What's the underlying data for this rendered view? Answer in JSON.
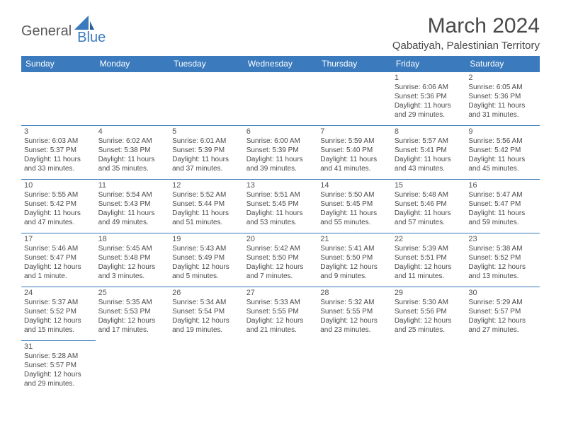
{
  "logo": {
    "part1": "General",
    "part2": "Blue"
  },
  "title": "March 2024",
  "location": "Qabatiyah, Palestinian Territory",
  "colors": {
    "header_bg": "#3a7abd",
    "header_text": "#ffffff",
    "border": "#3a7abd",
    "text": "#4a4a4a",
    "logo_gray": "#5a5a5a",
    "logo_blue": "#3a7abd",
    "background": "#ffffff"
  },
  "dayNames": [
    "Sunday",
    "Monday",
    "Tuesday",
    "Wednesday",
    "Thursday",
    "Friday",
    "Saturday"
  ],
  "weeks": [
    [
      null,
      null,
      null,
      null,
      null,
      {
        "n": "1",
        "sr": "Sunrise: 6:06 AM",
        "ss": "Sunset: 5:36 PM",
        "d1": "Daylight: 11 hours",
        "d2": "and 29 minutes."
      },
      {
        "n": "2",
        "sr": "Sunrise: 6:05 AM",
        "ss": "Sunset: 5:36 PM",
        "d1": "Daylight: 11 hours",
        "d2": "and 31 minutes."
      }
    ],
    [
      {
        "n": "3",
        "sr": "Sunrise: 6:03 AM",
        "ss": "Sunset: 5:37 PM",
        "d1": "Daylight: 11 hours",
        "d2": "and 33 minutes."
      },
      {
        "n": "4",
        "sr": "Sunrise: 6:02 AM",
        "ss": "Sunset: 5:38 PM",
        "d1": "Daylight: 11 hours",
        "d2": "and 35 minutes."
      },
      {
        "n": "5",
        "sr": "Sunrise: 6:01 AM",
        "ss": "Sunset: 5:39 PM",
        "d1": "Daylight: 11 hours",
        "d2": "and 37 minutes."
      },
      {
        "n": "6",
        "sr": "Sunrise: 6:00 AM",
        "ss": "Sunset: 5:39 PM",
        "d1": "Daylight: 11 hours",
        "d2": "and 39 minutes."
      },
      {
        "n": "7",
        "sr": "Sunrise: 5:59 AM",
        "ss": "Sunset: 5:40 PM",
        "d1": "Daylight: 11 hours",
        "d2": "and 41 minutes."
      },
      {
        "n": "8",
        "sr": "Sunrise: 5:57 AM",
        "ss": "Sunset: 5:41 PM",
        "d1": "Daylight: 11 hours",
        "d2": "and 43 minutes."
      },
      {
        "n": "9",
        "sr": "Sunrise: 5:56 AM",
        "ss": "Sunset: 5:42 PM",
        "d1": "Daylight: 11 hours",
        "d2": "and 45 minutes."
      }
    ],
    [
      {
        "n": "10",
        "sr": "Sunrise: 5:55 AM",
        "ss": "Sunset: 5:42 PM",
        "d1": "Daylight: 11 hours",
        "d2": "and 47 minutes."
      },
      {
        "n": "11",
        "sr": "Sunrise: 5:54 AM",
        "ss": "Sunset: 5:43 PM",
        "d1": "Daylight: 11 hours",
        "d2": "and 49 minutes."
      },
      {
        "n": "12",
        "sr": "Sunrise: 5:52 AM",
        "ss": "Sunset: 5:44 PM",
        "d1": "Daylight: 11 hours",
        "d2": "and 51 minutes."
      },
      {
        "n": "13",
        "sr": "Sunrise: 5:51 AM",
        "ss": "Sunset: 5:45 PM",
        "d1": "Daylight: 11 hours",
        "d2": "and 53 minutes."
      },
      {
        "n": "14",
        "sr": "Sunrise: 5:50 AM",
        "ss": "Sunset: 5:45 PM",
        "d1": "Daylight: 11 hours",
        "d2": "and 55 minutes."
      },
      {
        "n": "15",
        "sr": "Sunrise: 5:48 AM",
        "ss": "Sunset: 5:46 PM",
        "d1": "Daylight: 11 hours",
        "d2": "and 57 minutes."
      },
      {
        "n": "16",
        "sr": "Sunrise: 5:47 AM",
        "ss": "Sunset: 5:47 PM",
        "d1": "Daylight: 11 hours",
        "d2": "and 59 minutes."
      }
    ],
    [
      {
        "n": "17",
        "sr": "Sunrise: 5:46 AM",
        "ss": "Sunset: 5:47 PM",
        "d1": "Daylight: 12 hours",
        "d2": "and 1 minute."
      },
      {
        "n": "18",
        "sr": "Sunrise: 5:45 AM",
        "ss": "Sunset: 5:48 PM",
        "d1": "Daylight: 12 hours",
        "d2": "and 3 minutes."
      },
      {
        "n": "19",
        "sr": "Sunrise: 5:43 AM",
        "ss": "Sunset: 5:49 PM",
        "d1": "Daylight: 12 hours",
        "d2": "and 5 minutes."
      },
      {
        "n": "20",
        "sr": "Sunrise: 5:42 AM",
        "ss": "Sunset: 5:50 PM",
        "d1": "Daylight: 12 hours",
        "d2": "and 7 minutes."
      },
      {
        "n": "21",
        "sr": "Sunrise: 5:41 AM",
        "ss": "Sunset: 5:50 PM",
        "d1": "Daylight: 12 hours",
        "d2": "and 9 minutes."
      },
      {
        "n": "22",
        "sr": "Sunrise: 5:39 AM",
        "ss": "Sunset: 5:51 PM",
        "d1": "Daylight: 12 hours",
        "d2": "and 11 minutes."
      },
      {
        "n": "23",
        "sr": "Sunrise: 5:38 AM",
        "ss": "Sunset: 5:52 PM",
        "d1": "Daylight: 12 hours",
        "d2": "and 13 minutes."
      }
    ],
    [
      {
        "n": "24",
        "sr": "Sunrise: 5:37 AM",
        "ss": "Sunset: 5:52 PM",
        "d1": "Daylight: 12 hours",
        "d2": "and 15 minutes."
      },
      {
        "n": "25",
        "sr": "Sunrise: 5:35 AM",
        "ss": "Sunset: 5:53 PM",
        "d1": "Daylight: 12 hours",
        "d2": "and 17 minutes."
      },
      {
        "n": "26",
        "sr": "Sunrise: 5:34 AM",
        "ss": "Sunset: 5:54 PM",
        "d1": "Daylight: 12 hours",
        "d2": "and 19 minutes."
      },
      {
        "n": "27",
        "sr": "Sunrise: 5:33 AM",
        "ss": "Sunset: 5:55 PM",
        "d1": "Daylight: 12 hours",
        "d2": "and 21 minutes."
      },
      {
        "n": "28",
        "sr": "Sunrise: 5:32 AM",
        "ss": "Sunset: 5:55 PM",
        "d1": "Daylight: 12 hours",
        "d2": "and 23 minutes."
      },
      {
        "n": "29",
        "sr": "Sunrise: 5:30 AM",
        "ss": "Sunset: 5:56 PM",
        "d1": "Daylight: 12 hours",
        "d2": "and 25 minutes."
      },
      {
        "n": "30",
        "sr": "Sunrise: 5:29 AM",
        "ss": "Sunset: 5:57 PM",
        "d1": "Daylight: 12 hours",
        "d2": "and 27 minutes."
      }
    ],
    [
      {
        "n": "31",
        "sr": "Sunrise: 5:28 AM",
        "ss": "Sunset: 5:57 PM",
        "d1": "Daylight: 12 hours",
        "d2": "and 29 minutes."
      },
      null,
      null,
      null,
      null,
      null,
      null
    ]
  ]
}
